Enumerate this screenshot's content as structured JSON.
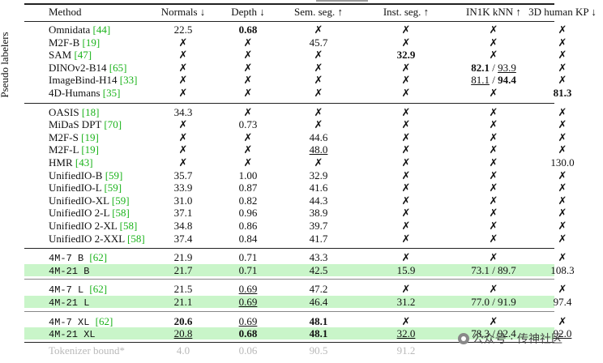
{
  "header": {
    "method": "Method",
    "normals": "Normals ↓",
    "depth": "Depth ↓",
    "semseg": "Sem. seg. ↑",
    "instseg": "Inst. seg. ↑",
    "knn": "IN1K kNN ↑",
    "kp": "3D human KP ↓"
  },
  "group_label": "Pseudo labelers",
  "pseudo": [
    {
      "name": "Omnidata ",
      "cite": "[44]",
      "n": "22.5",
      "d": "0.68",
      "s": "✗",
      "i": "✗",
      "k": "✗",
      "p": "✗"
    },
    {
      "name": "M2F-B ",
      "cite": "[19]",
      "n": "✗",
      "d": "✗",
      "s": "45.7",
      "i": "✗",
      "k": "✗",
      "p": "✗"
    },
    {
      "name": "SAM ",
      "cite": "[47]",
      "n": "✗",
      "d": "✗",
      "s": "✗",
      "i": "32.9",
      "k": "✗",
      "p": "✗"
    },
    {
      "name": "DINOv2-B14 ",
      "cite": "[65]",
      "n": "✗",
      "d": "✗",
      "s": "✗",
      "i": "✗",
      "k1": "82.1",
      "ksep": " / ",
      "k2": "93.9",
      "p": "✗"
    },
    {
      "name": "ImageBind-H14 ",
      "cite": "[33]",
      "n": "✗",
      "d": "✗",
      "s": "✗",
      "i": "✗",
      "k1": "81.1",
      "ksep": " / ",
      "k2": "94.4",
      "p": "✗"
    },
    {
      "name": "4D-Humans ",
      "cite": "[35]",
      "n": "✗",
      "d": "✗",
      "s": "✗",
      "i": "✗",
      "k": "✗",
      "p": "81.3"
    }
  ],
  "specialists": [
    {
      "name": "OASIS ",
      "cite": "[18]",
      "n": "34.3",
      "d": "✗",
      "s": "✗",
      "i": "✗",
      "k": "✗",
      "p": "✗"
    },
    {
      "name": "MiDaS DPT ",
      "cite": "[70]",
      "n": "✗",
      "d": "0.73",
      "s": "✗",
      "i": "✗",
      "k": "✗",
      "p": "✗"
    },
    {
      "name": "M2F-S ",
      "cite": "[19]",
      "n": "✗",
      "d": "✗",
      "s": "44.6",
      "i": "✗",
      "k": "✗",
      "p": "✗"
    },
    {
      "name": "M2F-L ",
      "cite": "[19]",
      "n": "✗",
      "d": "✗",
      "s": "48.0",
      "i": "✗",
      "k": "✗",
      "p": "✗"
    },
    {
      "name": "HMR ",
      "cite": "[43]",
      "n": "✗",
      "d": "✗",
      "s": "✗",
      "i": "✗",
      "k": "✗",
      "p": "130.0"
    },
    {
      "name": "UnifiedIO-B ",
      "cite": "[59]",
      "n": "35.7",
      "d": "1.00",
      "s": "32.9",
      "i": "✗",
      "k": "✗",
      "p": "✗"
    },
    {
      "name": "UnifiedIO-L ",
      "cite": "[59]",
      "n": "33.9",
      "d": "0.87",
      "s": "41.6",
      "i": "✗",
      "k": "✗",
      "p": "✗"
    },
    {
      "name": "UnifiedIO-XL ",
      "cite": "[59]",
      "n": "31.0",
      "d": "0.82",
      "s": "44.3",
      "i": "✗",
      "k": "✗",
      "p": "✗"
    },
    {
      "name": "UnifiedIO 2-L ",
      "cite": "[58]",
      "n": "37.1",
      "d": "0.96",
      "s": "38.9",
      "i": "✗",
      "k": "✗",
      "p": "✗"
    },
    {
      "name": "UnifiedIO 2-XL ",
      "cite": "[58]",
      "n": "34.8",
      "d": "0.86",
      "s": "39.7",
      "i": "✗",
      "k": "✗",
      "p": "✗"
    },
    {
      "name": "UnifiedIO 2-XXL ",
      "cite": "[58]",
      "n": "37.4",
      "d": "0.84",
      "s": "41.7",
      "i": "✗",
      "k": "✗",
      "p": "✗"
    }
  ],
  "fourm": [
    {
      "name": "4M-7 B ",
      "cite": "[62]",
      "n": "21.9",
      "d": "0.71",
      "s": "43.3",
      "i": "✗",
      "k": "✗",
      "p": "✗"
    },
    {
      "name": "4M-21 B",
      "cite": "",
      "n": "21.7",
      "d": "0.71",
      "s": "42.5",
      "i": "15.9",
      "k": "73.1 / 89.7",
      "p": "108.3"
    },
    {
      "name": "4M-7 L ",
      "cite": "[62]",
      "n": "21.5",
      "d": "0.69",
      "s": "47.2",
      "i": "✗",
      "k": "✗",
      "p": "✗"
    },
    {
      "name": "4M-21 L",
      "cite": "",
      "n": "21.1",
      "d": "0.69",
      "s": "46.4",
      "i": "31.2",
      "k": "77.0 / 91.9",
      "p": "97.4"
    },
    {
      "name": "4M-7 XL ",
      "cite": "[62]",
      "n": "20.6",
      "d": "0.69",
      "s": "48.1",
      "i": "✗",
      "k": "✗",
      "p": "✗"
    },
    {
      "name": "4M-21 XL",
      "cite": "",
      "n": "20.8",
      "d": "0.68",
      "s": "48.1",
      "i": "32.0",
      "k": "78.3 / 92.4",
      "p": "92.0"
    }
  ],
  "bound": {
    "name": "Tokenizer bound*",
    "n": "4.0",
    "d": "0.06",
    "s": "90.5",
    "i": "91.2"
  },
  "watermark": "公众号 · 传神社区"
}
